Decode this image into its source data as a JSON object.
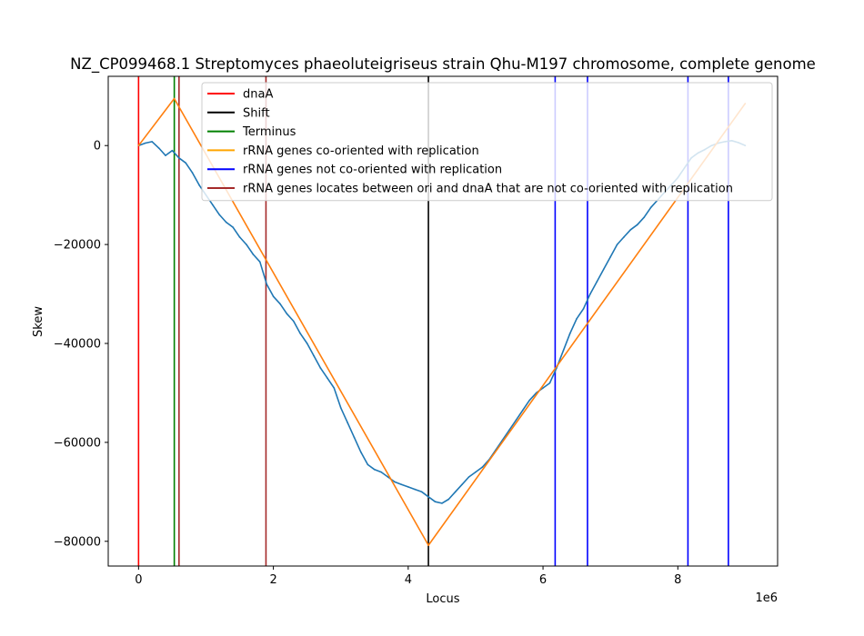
{
  "chart_data": {
    "type": "line",
    "title": "NZ_CP099468.1 Streptomyces phaeoluteigriseus strain Qhu-M197 chromosome, complete genome",
    "xlabel": "Locus",
    "ylabel": "Skew",
    "x_offset_label": "1e6",
    "xlim": [
      -450000,
      9480000
    ],
    "ylim": [
      -85000,
      14000
    ],
    "x_ticks": [
      0,
      2000000,
      4000000,
      6000000,
      8000000
    ],
    "x_tick_labels": [
      "0",
      "2",
      "4",
      "6",
      "8"
    ],
    "y_ticks": [
      0,
      -20000,
      -40000,
      -60000,
      -80000
    ],
    "y_tick_labels": [
      "0",
      "−20000",
      "−40000",
      "−60000",
      "−80000"
    ],
    "grid": false,
    "legend_position": "top-right",
    "legend": [
      {
        "label": "dnaA",
        "color": "#ff0000"
      },
      {
        "label": "Shift",
        "color": "#000000"
      },
      {
        "label": "Terminus",
        "color": "#008000"
      },
      {
        "label": "rRNA genes co-oriented with replication",
        "color": "#ffa500"
      },
      {
        "label": "rRNA genes not co-oriented with replication",
        "color": "#0000ff"
      },
      {
        "label": "rRNA genes locates between ori and dnaA that are not co-oriented with replication",
        "color": "#a52a2a"
      }
    ],
    "vertical_lines": [
      {
        "x": 0,
        "color": "#ff0000",
        "kind": "dnaA"
      },
      {
        "x": 530000,
        "color": "#008000",
        "kind": "Terminus"
      },
      {
        "x": 600000,
        "color": "#a52a2a",
        "kind": "rRNA between ori and dnaA"
      },
      {
        "x": 1890000,
        "color": "#a52a2a",
        "kind": "rRNA between ori and dnaA"
      },
      {
        "x": 4300000,
        "color": "#000000",
        "kind": "Shift"
      },
      {
        "x": 6180000,
        "color": "#0000ff",
        "kind": "rRNA not co-oriented"
      },
      {
        "x": 6660000,
        "color": "#0000ff",
        "kind": "rRNA not co-oriented"
      },
      {
        "x": 8150000,
        "color": "#0000ff",
        "kind": "rRNA not co-oriented"
      },
      {
        "x": 8750000,
        "color": "#0000ff",
        "kind": "rRNA not co-oriented"
      }
    ],
    "series": [
      {
        "color": "#1f77b4",
        "x": [
          0,
          100000,
          200000,
          300000,
          400000,
          500000,
          600000,
          700000,
          800000,
          900000,
          1000000,
          1100000,
          1200000,
          1300000,
          1400000,
          1500000,
          1600000,
          1700000,
          1800000,
          1900000,
          2000000,
          2100000,
          2200000,
          2300000,
          2400000,
          2500000,
          2600000,
          2700000,
          2800000,
          2900000,
          3000000,
          3100000,
          3200000,
          3300000,
          3400000,
          3500000,
          3600000,
          3700000,
          3800000,
          3900000,
          4000000,
          4100000,
          4200000,
          4300000,
          4400000,
          4500000,
          4600000,
          4700000,
          4800000,
          4900000,
          5000000,
          5100000,
          5200000,
          5300000,
          5400000,
          5500000,
          5600000,
          5700000,
          5800000,
          5900000,
          6000000,
          6100000,
          6200000,
          6300000,
          6400000,
          6500000,
          6600000,
          6700000,
          6800000,
          6900000,
          7000000,
          7100000,
          7200000,
          7300000,
          7400000,
          7500000,
          7600000,
          7700000,
          7800000,
          7900000,
          8000000,
          8100000,
          8200000,
          8300000,
          8400000,
          8500000,
          8600000,
          8700000,
          8800000,
          8900000,
          9000000
        ],
        "values": [
          0,
          500,
          800,
          -500,
          -2000,
          -1000,
          -2500,
          -3500,
          -5500,
          -8000,
          -10000,
          -12000,
          -14000,
          -15500,
          -16500,
          -18500,
          -20000,
          -22000,
          -23500,
          -28000,
          -30500,
          -32000,
          -34000,
          -35500,
          -38000,
          -40000,
          -42500,
          -45000,
          -47000,
          -49000,
          -53000,
          -56000,
          -59000,
          -62000,
          -64500,
          -65500,
          -66000,
          -67000,
          -68000,
          -68500,
          -69000,
          -69500,
          -70000,
          -71000,
          -72000,
          -72300,
          -71500,
          -70000,
          -68500,
          -67000,
          -66000,
          -65000,
          -63500,
          -61500,
          -59500,
          -57500,
          -55500,
          -53500,
          -51500,
          -50000,
          -49000,
          -48000,
          -45000,
          -41500,
          -38000,
          -35000,
          -33000,
          -30000,
          -27500,
          -25000,
          -22500,
          -20000,
          -18500,
          -17000,
          -16000,
          -14500,
          -12500,
          -11000,
          -9500,
          -8000,
          -6500,
          -4500,
          -2500,
          -1500,
          -800,
          0,
          500,
          800,
          1000,
          600,
          0
        ]
      },
      {
        "color": "#ff7f0e",
        "x": [
          0,
          530000,
          4300000,
          9000000
        ],
        "values": [
          0,
          9500,
          -80800,
          8500
        ]
      }
    ]
  }
}
